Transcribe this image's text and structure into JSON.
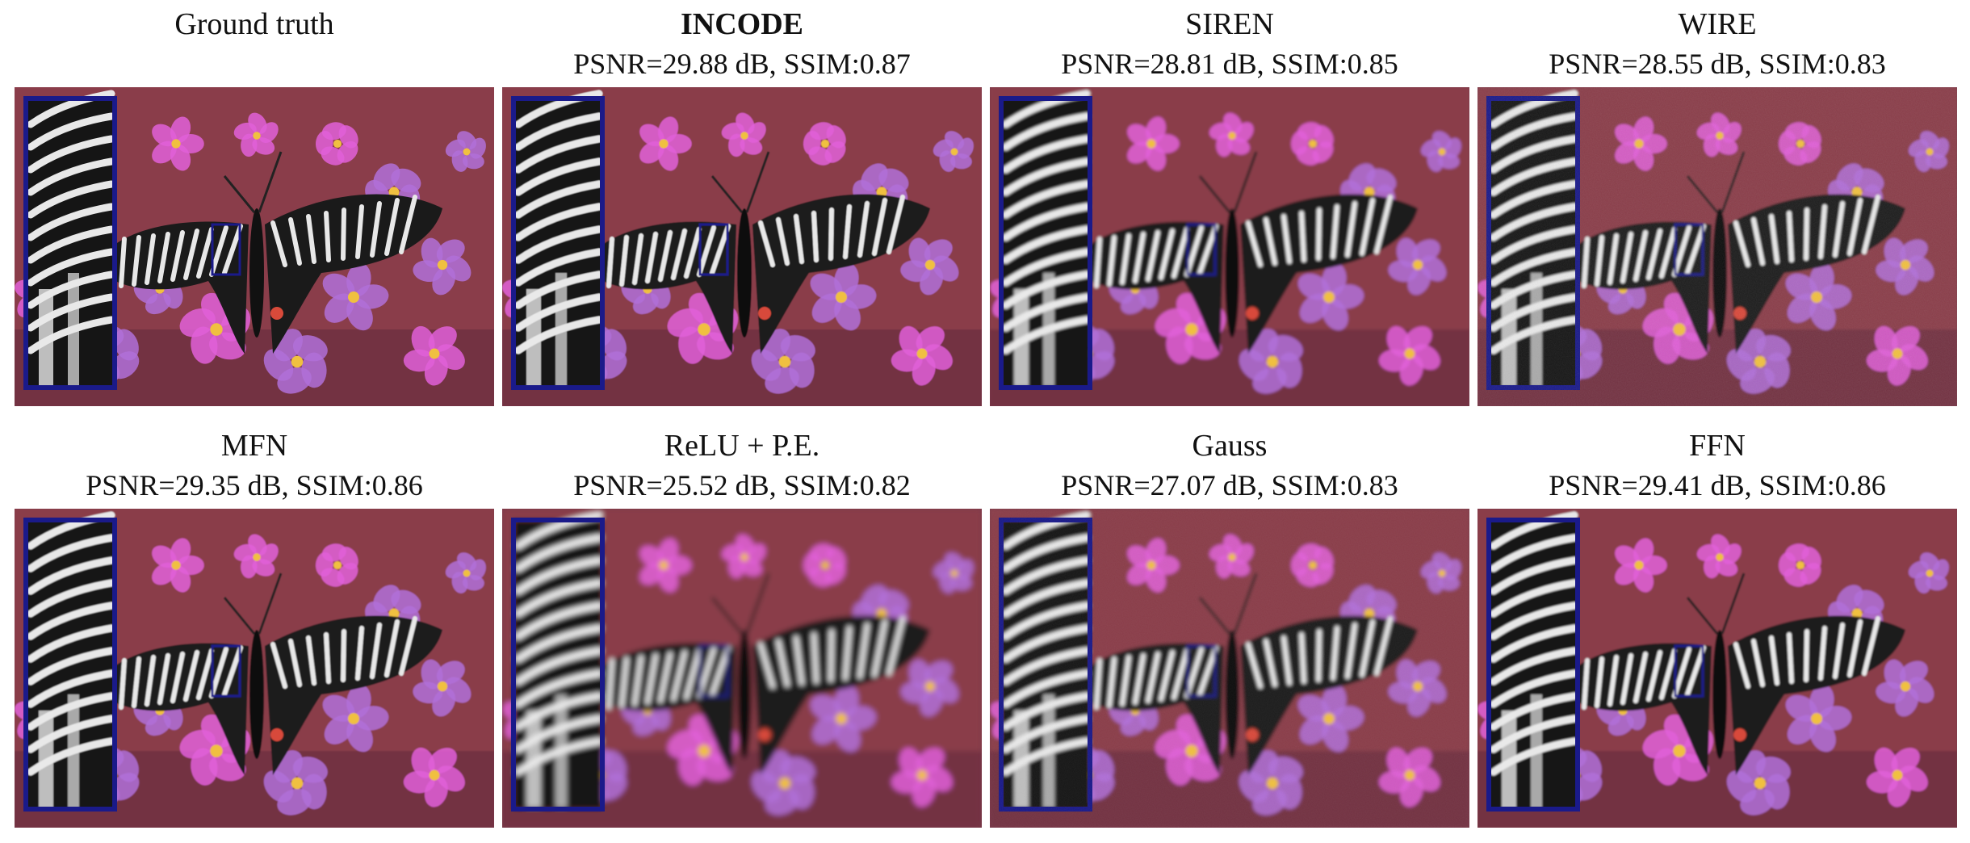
{
  "figure": {
    "panels": [
      {
        "title": "Ground truth",
        "metric": "",
        "bold": false,
        "blur": 0,
        "noise": 0
      },
      {
        "title": "INCODE",
        "metric": "PSNR=29.88 dB, SSIM:0.87",
        "bold": true,
        "blur": 0.6,
        "noise": 0
      },
      {
        "title": "SIREN",
        "metric": "PSNR=28.81 dB, SSIM:0.85",
        "bold": false,
        "blur": 1.6,
        "noise": 0
      },
      {
        "title": "WIRE",
        "metric": "PSNR=28.55 dB, SSIM:0.83",
        "bold": false,
        "blur": 1.2,
        "noise": 0.5
      },
      {
        "title": "MFN",
        "metric": "PSNR=29.35 dB, SSIM:0.86",
        "bold": false,
        "blur": 0.9,
        "noise": 0
      },
      {
        "title": "ReLU + P.E.",
        "metric": "PSNR=25.52 dB, SSIM:0.82",
        "bold": false,
        "blur": 3.2,
        "noise": 0
      },
      {
        "title": "Gauss",
        "metric": "PSNR=27.07 dB, SSIM:0.83",
        "bold": false,
        "blur": 2.0,
        "noise": 0.3
      },
      {
        "title": "FFN",
        "metric": "PSNR=29.41 dB, SSIM:0.86",
        "bold": false,
        "blur": 1.0,
        "noise": 0
      }
    ],
    "colors": {
      "inset_border": "#1a1a8a",
      "background_wall": "#8a3d4a",
      "flower_pink": "#e060d8",
      "flower_violet": "#b070d8",
      "flower_center": "#f0c040",
      "butterfly_dark": "#1a1a1a",
      "butterfly_light": "#e8e8e8",
      "spot_red": "#d84a3a"
    }
  }
}
